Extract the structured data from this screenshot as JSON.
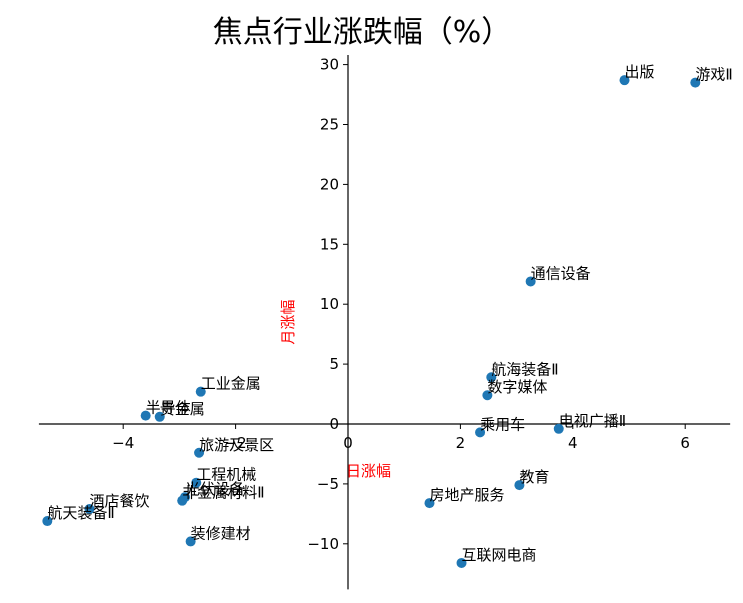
{
  "chart_data": {
    "type": "scatter",
    "title": "焦点行业涨跌幅（%）",
    "xlabel": "日涨幅",
    "ylabel": "月涨幅",
    "xlim": [
      -5.5,
      6.8
    ],
    "ylim": [
      -13.8,
      30.8
    ],
    "xticks": [
      -4,
      -2,
      0,
      2,
      4,
      6
    ],
    "yticks": [
      -10,
      -5,
      0,
      5,
      10,
      15,
      20,
      25,
      30
    ],
    "grid": false,
    "point_color": "#1f77b4",
    "axis_label_color": "#ff0000",
    "points": [
      {
        "label": "出版",
        "x": 4.92,
        "y": 28.7
      },
      {
        "label": "游戏Ⅱ",
        "x": 6.18,
        "y": 28.5
      },
      {
        "label": "通信设备",
        "x": 3.25,
        "y": 11.9
      },
      {
        "label": "航海装备Ⅱ",
        "x": 2.55,
        "y": 3.9
      },
      {
        "label": "数字媒体",
        "x": 2.48,
        "y": 2.4
      },
      {
        "label": "乘用车",
        "x": 2.35,
        "y": -0.7
      },
      {
        "label": "电视广播Ⅱ",
        "x": 3.75,
        "y": -0.4
      },
      {
        "label": "教育",
        "x": 3.05,
        "y": -5.1
      },
      {
        "label": "房地产服务",
        "x": 1.45,
        "y": -6.6
      },
      {
        "label": "互联网电商",
        "x": 2.02,
        "y": -11.6
      },
      {
        "label": "工业金属",
        "x": -2.62,
        "y": 2.7
      },
      {
        "label": "半导体",
        "x": -3.6,
        "y": 0.7
      },
      {
        "label": "贵金属",
        "x": -3.35,
        "y": 0.6
      },
      {
        "label": "旅游及景区",
        "x": -2.65,
        "y": -2.4
      },
      {
        "label": "工程机械",
        "x": -2.7,
        "y": -4.9
      },
      {
        "label": "光伏设备",
        "x": -2.9,
        "y": -6.1
      },
      {
        "label": "非金属材料Ⅱ",
        "x": -2.95,
        "y": -6.4
      },
      {
        "label": "装修建材",
        "x": -2.8,
        "y": -9.8
      },
      {
        "label": "酒店餐饮",
        "x": -4.6,
        "y": -7.1
      },
      {
        "label": "航天装备Ⅱ",
        "x": -5.35,
        "y": -8.1
      }
    ]
  }
}
